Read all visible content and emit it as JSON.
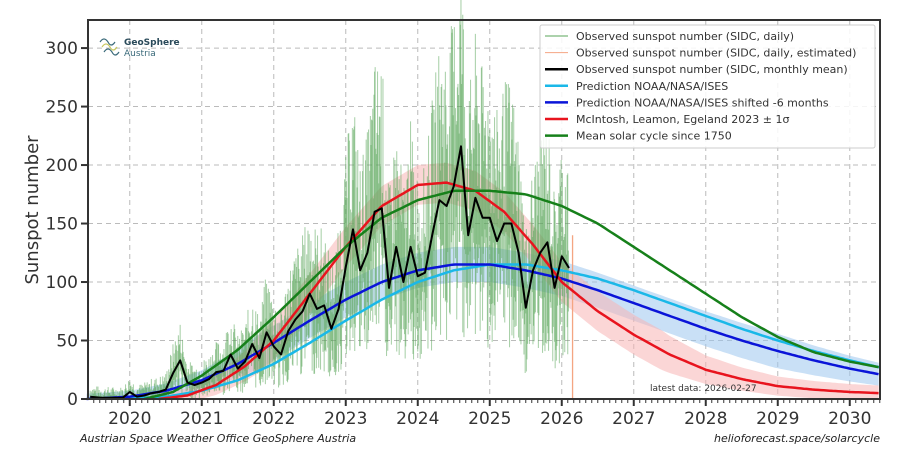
{
  "chart_data": {
    "type": "line",
    "title": "",
    "xlabel": "",
    "ylabel": "Sunspot number",
    "xlim": [
      2019.42,
      2030.42
    ],
    "ylim": [
      0,
      324
    ],
    "grid": true,
    "x_ticks": [
      2020,
      2021,
      2022,
      2023,
      2024,
      2025,
      2026,
      2027,
      2028,
      2029,
      2030
    ],
    "y_ticks": [
      0,
      50,
      100,
      150,
      200,
      250,
      300
    ],
    "legend_placement": "top-right",
    "legend": [
      {
        "label": "Observed sunspot number (SIDC, daily)",
        "color": "#5aa65a"
      },
      {
        "label": "Observed sunspot number (SIDC, daily, estimated)",
        "color": "#f4a582"
      },
      {
        "label": "Observed sunspot number (SIDC, monthly mean)",
        "color": "#000000"
      },
      {
        "label": "Prediction NOAA/NASA/ISES",
        "color": "#1ab8e8"
      },
      {
        "label": "Prediction NOAA/NASA/ISES shifted -6 months",
        "color": "#0a14d8"
      },
      {
        "label": "McIntosh, Leamon, Egeland 2023 ± 1σ",
        "color": "#e8141e"
      },
      {
        "label": "Mean solar cycle since 1750",
        "color": "#16801a"
      }
    ],
    "series": [
      {
        "name": "Observed sunspot number (SIDC, monthly mean)",
        "x": [
          2019.45,
          2019.6,
          2019.75,
          2019.9,
          2020.0,
          2020.1,
          2020.2,
          2020.3,
          2020.4,
          2020.5,
          2020.6,
          2020.7,
          2020.8,
          2020.9,
          2021.0,
          2021.1,
          2021.2,
          2021.3,
          2021.4,
          2021.5,
          2021.6,
          2021.7,
          2021.8,
          2021.9,
          2022.0,
          2022.1,
          2022.2,
          2022.3,
          2022.4,
          2022.5,
          2022.6,
          2022.7,
          2022.8,
          2022.9,
          2023.0,
          2023.1,
          2023.2,
          2023.3,
          2023.4,
          2023.5,
          2023.6,
          2023.7,
          2023.8,
          2023.9,
          2024.0,
          2024.1,
          2024.2,
          2024.3,
          2024.4,
          2024.5,
          2024.6,
          2024.7,
          2024.8,
          2024.9,
          2025.0,
          2025.1,
          2025.2,
          2025.3,
          2025.4,
          2025.5,
          2025.6,
          2025.7,
          2025.8,
          2025.9,
          2026.0,
          2026.1
        ],
        "values": [
          2,
          1,
          1,
          1,
          6,
          2,
          3,
          5,
          6,
          8,
          22,
          33,
          14,
          12,
          14,
          17,
          23,
          24,
          38,
          26,
          32,
          47,
          35,
          57,
          45,
          38,
          58,
          68,
          75,
          90,
          77,
          80,
          60,
          77,
          113,
          145,
          110,
          125,
          160,
          163,
          95,
          130,
          100,
          130,
          105,
          108,
          140,
          170,
          165,
          182,
          216,
          140,
          172,
          155,
          155,
          135,
          150,
          150,
          125,
          78,
          110,
          125,
          134,
          95,
          122,
          112
        ]
      },
      {
        "name": "Prediction NOAA/NASA/ISES",
        "x": [
          2019.9,
          2020.5,
          2021.0,
          2021.5,
          2022.0,
          2022.5,
          2023.0,
          2023.5,
          2024.0,
          2024.5,
          2025.0,
          2025.5,
          2026.0,
          2026.5,
          2027.0,
          2027.5,
          2028.0,
          2028.5,
          2029.0,
          2029.5,
          2030.0,
          2030.42
        ],
        "values": [
          0,
          2,
          7,
          16,
          30,
          48,
          67,
          85,
          100,
          110,
          115,
          115,
          110,
          103,
          93,
          82,
          71,
          60,
          50,
          41,
          33,
          27
        ]
      },
      {
        "name": "Prediction NOAA/NASA/ISES shifted -6 months",
        "x": [
          2019.4,
          2020.0,
          2020.5,
          2021.0,
          2021.5,
          2022.0,
          2022.5,
          2023.0,
          2023.5,
          2024.0,
          2024.5,
          2025.0,
          2025.5,
          2026.0,
          2026.5,
          2027.0,
          2027.5,
          2028.0,
          2028.5,
          2029.0,
          2029.5,
          2030.0,
          2030.42
        ],
        "values": [
          0,
          2,
          7,
          16,
          30,
          48,
          67,
          85,
          100,
          110,
          115,
          115,
          110,
          103,
          93,
          82,
          71,
          60,
          50,
          41,
          33,
          26,
          21
        ],
        "band_sigma": 15
      },
      {
        "name": "McIntosh, Leamon, Egeland 2023 ± 1σ",
        "x": [
          2020.4,
          2020.8,
          2021.2,
          2021.6,
          2022.0,
          2022.5,
          2023.0,
          2023.5,
          2024.0,
          2024.4,
          2024.8,
          2025.2,
          2025.6,
          2026.0,
          2026.5,
          2027.0,
          2027.5,
          2028.0,
          2028.5,
          2029.0,
          2029.5,
          2030.0,
          2030.42
        ],
        "values": [
          0,
          3,
          12,
          28,
          50,
          90,
          130,
          165,
          183,
          185,
          178,
          160,
          132,
          100,
          75,
          55,
          38,
          25,
          17,
          11,
          8,
          6,
          5
        ],
        "band_sigma": 17
      },
      {
        "name": "Mean solar cycle since 1750",
        "x": [
          2020.2,
          2020.6,
          2021.0,
          2021.5,
          2022.0,
          2022.5,
          2023.0,
          2023.5,
          2024.0,
          2024.5,
          2025.0,
          2025.5,
          2026.0,
          2026.5,
          2027.0,
          2027.5,
          2028.0,
          2028.5,
          2029.0,
          2029.5,
          2030.0,
          2030.42
        ],
        "values": [
          0,
          6,
          20,
          42,
          70,
          100,
          130,
          155,
          170,
          178,
          178,
          175,
          165,
          150,
          130,
          110,
          90,
          70,
          53,
          40,
          32,
          27
        ]
      }
    ],
    "daily_observed_note": "dense daily values scattered around monthly mean, reaching ~290 near 2024.6",
    "estimated_daily_end": {
      "x": 2026.15,
      "value": 0
    }
  },
  "annotations": {
    "latest_data": "latest data: 2026-02-27",
    "footer_left": "Austrian Space Weather Office   GeoSphere Austria",
    "footer_right": "helioforecast.space/solarcycle",
    "logo_line1": "GeoSphere",
    "logo_line2": "Austria"
  }
}
